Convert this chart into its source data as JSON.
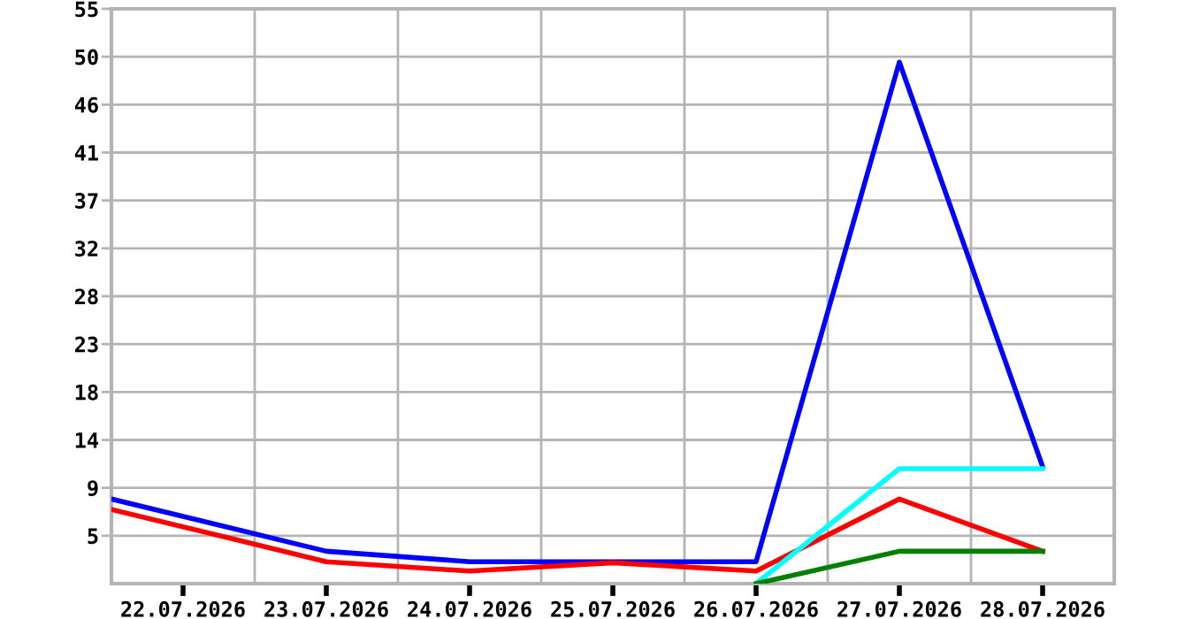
{
  "chart_data": {
    "type": "line",
    "series": [
      {
        "color": "#0000ff",
        "x": [
          "2026-07-21T12:00",
          "2026-07-23",
          "2026-07-24",
          "2026-07-25",
          "2026-07-26",
          "2026-07-27",
          "2026-07-28"
        ],
        "values": [
          8.1,
          3.1,
          2.1,
          2.1,
          2.1,
          49.9,
          11.2
        ]
      },
      {
        "color": "#ff0000",
        "x": [
          "2026-07-21T12:00",
          "2026-07-23",
          "2026-07-24",
          "2026-07-25",
          "2026-07-26",
          "2026-07-27",
          "2026-07-28"
        ],
        "values": [
          7.1,
          2.1,
          1.2,
          2.0,
          1.2,
          8.1,
          3.1
        ]
      },
      {
        "color": "#00ffff",
        "x": [
          "2026-07-26",
          "2026-07-27",
          "2026-07-28"
        ],
        "values": [
          0,
          11.0,
          11.0
        ]
      },
      {
        "color": "#008000",
        "x": [
          "2026-07-26",
          "2026-07-27",
          "2026-07-28"
        ],
        "values": [
          0,
          3.1,
          3.1
        ]
      }
    ],
    "xlim": [
      "2026-07-21T12:00",
      "2026-07-28T12:00"
    ],
    "xticks": [
      {
        "value": "2026-07-22",
        "label": "22.07.2026"
      },
      {
        "value": "2026-07-23",
        "label": "23.07.2026"
      },
      {
        "value": "2026-07-24",
        "label": "24.07.2026"
      },
      {
        "value": "2026-07-25",
        "label": "25.07.2026"
      },
      {
        "value": "2026-07-26",
        "label": "26.07.2026"
      },
      {
        "value": "2026-07-27",
        "label": "27.07.2026"
      },
      {
        "value": "2026-07-28",
        "label": "28.07.2026"
      }
    ],
    "ylim": [
      0,
      55
    ],
    "yticks": [
      {
        "value": 4.583,
        "label": "5"
      },
      {
        "value": 9.167,
        "label": "9"
      },
      {
        "value": 13.75,
        "label": "14"
      },
      {
        "value": 18.333,
        "label": "18"
      },
      {
        "value": 22.917,
        "label": "23"
      },
      {
        "value": 27.5,
        "label": "28"
      },
      {
        "value": 32.083,
        "label": "32"
      },
      {
        "value": 36.667,
        "label": "37"
      },
      {
        "value": 41.25,
        "label": "41"
      },
      {
        "value": 45.833,
        "label": "46"
      },
      {
        "value": 50.417,
        "label": "50"
      },
      {
        "value": 55,
        "label": "55"
      }
    ],
    "grid": true,
    "marker": "none",
    "line_style": "solid"
  }
}
